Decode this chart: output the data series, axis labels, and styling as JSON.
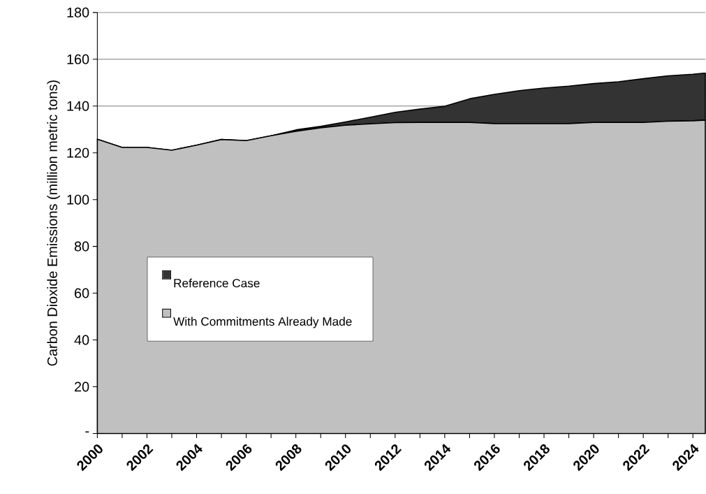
{
  "chart_data": {
    "type": "area",
    "stacked": true,
    "ylabel": "Carbon Dioxide Emissions (million metric tons)",
    "x": [
      2000,
      2001,
      2002,
      2003,
      2004,
      2005,
      2006,
      2007,
      2008,
      2009,
      2010,
      2011,
      2012,
      2013,
      2014,
      2015,
      2016,
      2017,
      2018,
      2019,
      2020,
      2021,
      2022,
      2023,
      2024,
      2024.5
    ],
    "series": [
      {
        "name": "With Commitments Already Made",
        "color": "#c0c0c0",
        "values": [
          125.8,
          122.3,
          122.3,
          121.1,
          123.3,
          125.7,
          125.2,
          127.3,
          129.2,
          130.7,
          131.8,
          132.4,
          132.9,
          133.0,
          133.0,
          133.0,
          132.5,
          132.5,
          132.5,
          132.5,
          133.0,
          133.0,
          133.0,
          133.5,
          133.7,
          134.0
        ]
      },
      {
        "name": "Reference Case",
        "color": "#333333",
        "values": [
          0,
          0,
          0,
          0,
          0,
          0,
          0,
          0,
          0.6,
          0.6,
          1.4,
          2.8,
          4.4,
          5.7,
          6.9,
          10.1,
          12.5,
          14.1,
          15.2,
          16.0,
          16.6,
          17.4,
          18.7,
          19.4,
          19.9,
          20.1
        ]
      }
    ],
    "xlim": [
      2000,
      2024.5
    ],
    "xticks": [
      2000,
      {
        "value": 2001,
        "label": null
      },
      2002,
      {
        "value": 2003,
        "label": null
      },
      2004,
      {
        "value": 2005,
        "label": null
      },
      2006,
      {
        "value": 2007,
        "label": null
      },
      2008,
      {
        "value": 2009,
        "label": null
      },
      2010,
      {
        "value": 2011,
        "label": null
      },
      2012,
      {
        "value": 2013,
        "label": null
      },
      2014,
      {
        "value": 2015,
        "label": null
      },
      2016,
      {
        "value": 2017,
        "label": null
      },
      2018,
      {
        "value": 2019,
        "label": null
      },
      2020,
      {
        "value": 2021,
        "label": null
      },
      2022,
      {
        "value": 2023,
        "label": null
      },
      2024
    ],
    "ylim": [
      0,
      180
    ],
    "yticks": [
      {
        "value": 0,
        "label": "-"
      },
      20,
      40,
      60,
      80,
      100,
      120,
      140,
      160,
      180
    ],
    "grid": "y",
    "legend": "left"
  }
}
